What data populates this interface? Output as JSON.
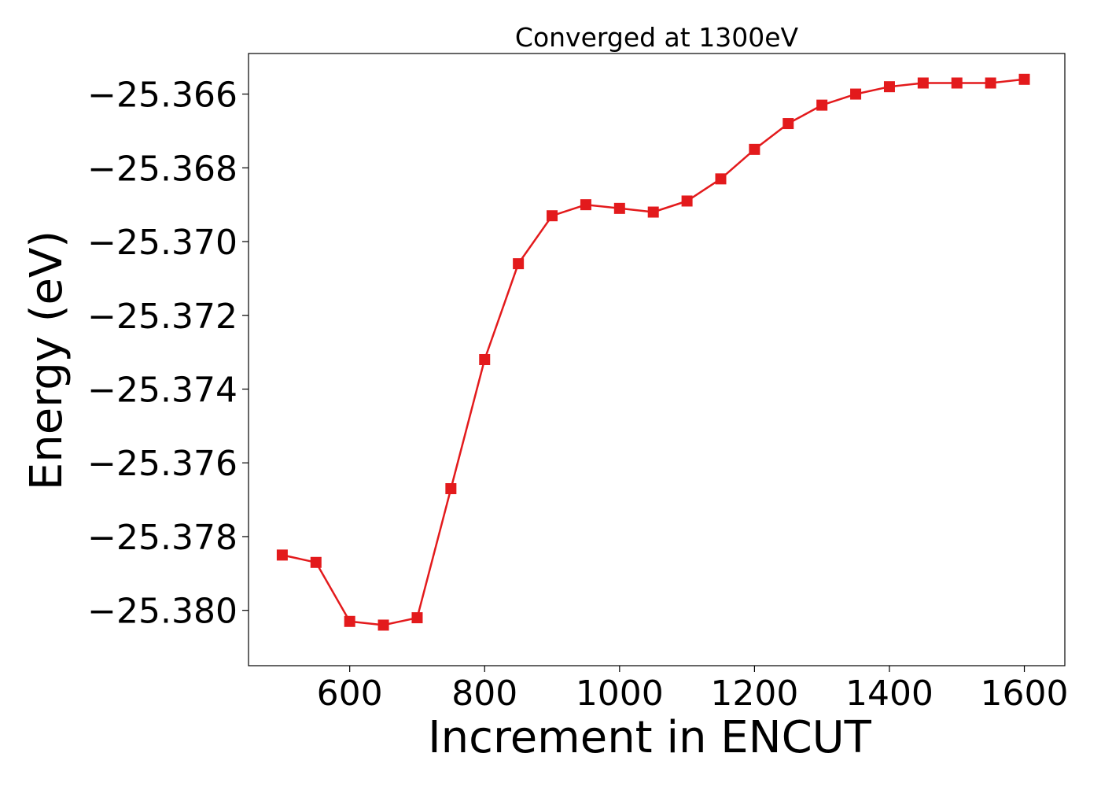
{
  "chart_data": {
    "type": "line",
    "title": "Converged at 1300eV",
    "xlabel": "Increment in ENCUT",
    "ylabel": "Energy (eV)",
    "xlim": [
      450,
      1660
    ],
    "ylim": [
      -25.3815,
      -25.3649
    ],
    "xticks": [
      600,
      800,
      1000,
      1200,
      1400,
      1600
    ],
    "xtick_labels": [
      "600",
      "800",
      "1000",
      "1200",
      "1400",
      "1600"
    ],
    "yticks": [
      -25.38,
      -25.378,
      -25.376,
      -25.374,
      -25.372,
      -25.37,
      -25.368,
      -25.366
    ],
    "ytick_labels": [
      "−25.380",
      "−25.378",
      "−25.376",
      "−25.374",
      "−25.372",
      "−25.370",
      "−25.368",
      "−25.366"
    ],
    "grid": false,
    "legend": false,
    "series": [
      {
        "color": "#e31a1c",
        "marker": "square",
        "x": [
          500,
          550,
          600,
          650,
          700,
          750,
          800,
          850,
          900,
          950,
          1000,
          1050,
          1100,
          1150,
          1200,
          1250,
          1300,
          1350,
          1400,
          1450,
          1500,
          1550,
          1600
        ],
        "y": [
          -25.3785,
          -25.3787,
          -25.3803,
          -25.3804,
          -25.3802,
          -25.3767,
          -25.3732,
          -25.3706,
          -25.3693,
          -25.369,
          -25.3691,
          -25.3692,
          -25.3689,
          -25.3683,
          -25.3675,
          -25.3668,
          -25.3663,
          -25.366,
          -25.3658,
          -25.3657,
          -25.3657,
          -25.3657,
          -25.3656
        ]
      }
    ]
  }
}
